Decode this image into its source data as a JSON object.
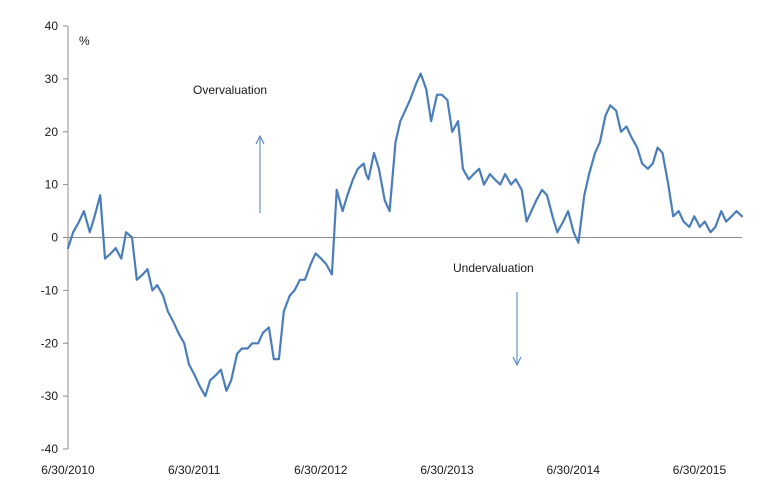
{
  "chart_data": {
    "type": "line",
    "title": "",
    "xlabel": "",
    "ylabel": "%",
    "ylim": [
      -40,
      40
    ],
    "y_ticks": [
      "-40",
      "-30",
      "-20",
      "-10",
      "0",
      "10",
      "20",
      "30",
      "40"
    ],
    "x_tick_labels": [
      "6/30/2010",
      "6/30/2011",
      "6/30/2012",
      "6/30/2013",
      "6/30/2014",
      "6/30/2015"
    ],
    "x_range": [
      "6/30/2010",
      "10/31/2015"
    ],
    "grid": false,
    "legend": "none",
    "annotations": {
      "overvaluation": "Overvaluation",
      "undervaluation": "Undervaluation"
    },
    "series": [
      {
        "color": "#4a7ebb",
        "x": [
          "2010-06-30",
          "2010-07-15",
          "2010-08-01",
          "2010-08-15",
          "2010-09-01",
          "2010-09-15",
          "2010-10-01",
          "2010-10-15",
          "2010-11-01",
          "2010-11-15",
          "2010-12-01",
          "2010-12-15",
          "2011-01-01",
          "2011-01-15",
          "2011-02-01",
          "2011-02-15",
          "2011-03-01",
          "2011-03-15",
          "2011-04-01",
          "2011-04-15",
          "2011-05-01",
          "2011-05-15",
          "2011-06-01",
          "2011-06-15",
          "2011-07-01",
          "2011-07-15",
          "2011-08-01",
          "2011-08-15",
          "2011-09-01",
          "2011-09-15",
          "2011-10-01",
          "2011-10-15",
          "2011-11-01",
          "2011-11-15",
          "2011-12-01",
          "2011-12-15",
          "2012-01-01",
          "2012-01-15",
          "2012-02-01",
          "2012-02-15",
          "2012-03-01",
          "2012-03-15",
          "2012-04-01",
          "2012-04-15",
          "2012-05-01",
          "2012-05-15",
          "2012-06-01",
          "2012-06-15",
          "2012-07-01",
          "2012-07-15",
          "2012-08-01",
          "2012-08-15",
          "2012-09-01",
          "2012-09-15",
          "2012-10-01",
          "2012-10-15",
          "2012-11-01",
          "2012-11-08",
          "2012-11-15",
          "2012-12-01",
          "2012-12-15",
          "2013-01-01",
          "2013-01-15",
          "2013-02-01",
          "2013-02-15",
          "2013-03-01",
          "2013-03-15",
          "2013-04-01",
          "2013-04-15",
          "2013-05-01",
          "2013-05-15",
          "2013-06-01",
          "2013-06-15",
          "2013-07-01",
          "2013-07-15",
          "2013-08-01",
          "2013-08-15",
          "2013-09-01",
          "2013-09-15",
          "2013-10-01",
          "2013-10-15",
          "2013-11-01",
          "2013-11-15",
          "2013-12-01",
          "2013-12-15",
          "2014-01-01",
          "2014-01-15",
          "2014-02-01",
          "2014-02-15",
          "2014-03-01",
          "2014-03-15",
          "2014-04-01",
          "2014-04-15",
          "2014-05-01",
          "2014-05-15",
          "2014-06-01",
          "2014-06-15",
          "2014-07-01",
          "2014-07-15",
          "2014-08-01",
          "2014-08-15",
          "2014-09-01",
          "2014-09-15",
          "2014-10-01",
          "2014-10-15",
          "2014-11-01",
          "2014-11-15",
          "2014-12-01",
          "2014-12-15",
          "2015-01-01",
          "2015-01-15",
          "2015-02-01",
          "2015-02-15",
          "2015-03-01",
          "2015-03-15",
          "2015-04-01",
          "2015-04-15",
          "2015-05-01",
          "2015-05-15",
          "2015-06-01",
          "2015-06-15",
          "2015-07-01",
          "2015-07-15",
          "2015-08-01",
          "2015-08-15",
          "2015-09-01",
          "2015-09-15",
          "2015-10-01",
          "2015-10-15",
          "2015-10-31"
        ],
        "values": [
          -2,
          1,
          3,
          5,
          1,
          4,
          8,
          -4,
          -3,
          -2,
          -4,
          1,
          0,
          -8,
          -7,
          -6,
          -10,
          -9,
          -11,
          -14,
          -16,
          -18,
          -20,
          -24,
          -26,
          -28,
          -30,
          -27,
          -26,
          -25,
          -29,
          -27,
          -22,
          -21,
          -21,
          -20,
          -20,
          -18,
          -17,
          -23,
          -23,
          -14,
          -11,
          -10,
          -8,
          -8,
          -5,
          -3,
          -4,
          -5,
          -7,
          9,
          5,
          8,
          11,
          13,
          14,
          12,
          11,
          16,
          13,
          7,
          5,
          18,
          22,
          24,
          26,
          29,
          31,
          28,
          22,
          27,
          27,
          26,
          20,
          22,
          13,
          11,
          12,
          13,
          10,
          12,
          11,
          10,
          12,
          10,
          11,
          9,
          3,
          5,
          7,
          9,
          8,
          4,
          1,
          3,
          5,
          1,
          -1,
          8,
          12,
          16,
          18,
          23,
          25,
          24,
          20,
          21,
          19,
          17,
          14,
          13,
          14,
          17,
          16,
          10,
          4,
          5,
          3,
          2,
          4,
          2,
          3,
          1,
          2,
          5,
          3,
          4,
          5,
          4
        ]
      }
    ]
  }
}
